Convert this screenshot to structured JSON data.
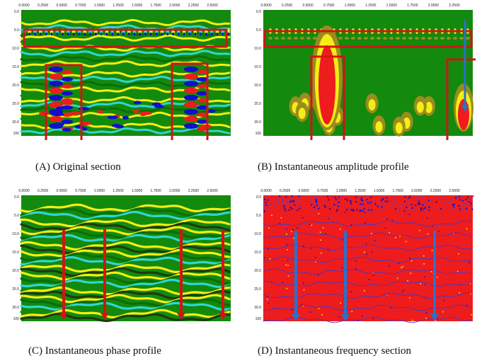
{
  "panels": [
    {
      "id": "A",
      "caption": "(A) Original section",
      "x_ticks": [
        "0.0000",
        "0.2500",
        "0.5000",
        "0.7500",
        "1.0000",
        "1.2500",
        "1.5000",
        "1.7500",
        "2.0000",
        "2.2500",
        "2.5000"
      ],
      "y_ticks": [
        "0.0",
        "5.0",
        "10.0",
        "15.0",
        "20.0",
        "25.0",
        "30.0"
      ],
      "y_bottom": "100"
    },
    {
      "id": "B",
      "caption": "(B) Instantaneous amplitude profile",
      "x_ticks": [
        "0.0000",
        "0.2500",
        "0.5000",
        "0.7500",
        "1.0000",
        "1.2500",
        "1.5000",
        "1.7500",
        "2.0000",
        "2.2500"
      ],
      "y_ticks": [
        "0.0",
        "5.0",
        "10.0",
        "15.0",
        "20.0",
        "25.0",
        "30.0"
      ],
      "y_bottom": "100"
    },
    {
      "id": "C",
      "caption": "(C) Instantaneous phase profile",
      "x_ticks": [
        "0.0000",
        "0.2500",
        "0.5000",
        "0.7500",
        "1.0000",
        "1.2500",
        "1.5000",
        "1.7500",
        "2.0000",
        "2.2500",
        "2.5000"
      ],
      "y_ticks": [
        "0.0",
        "5.0",
        "10.0",
        "15.0",
        "20.0",
        "25.0",
        "30.0"
      ],
      "y_bottom": "100"
    },
    {
      "id": "D",
      "caption": "(D) Instantaneous frequency section",
      "x_ticks": [
        "0.0000",
        "0.2500",
        "0.5000",
        "0.7500",
        "1.0000",
        "1.2500",
        "1.5000",
        "1.7500",
        "2.0000",
        "2.2500",
        "2.5000"
      ],
      "y_ticks": [
        "0.0",
        "5.0",
        "10.0",
        "15.0",
        "20.0",
        "25.0",
        "30.0"
      ],
      "y_bottom": "100"
    }
  ],
  "colors": {
    "green": "#138a0d",
    "dark_green": "#0a6e08",
    "yellow": "#f5ee14",
    "cyan": "#2fd6d6",
    "blue": "#1010c8",
    "red": "#ee1c1c",
    "olive": "#9a8c1e",
    "highlight_box": "#d21414",
    "arrow_red": "#d21414",
    "arrow_blue": "#2a72c8"
  }
}
